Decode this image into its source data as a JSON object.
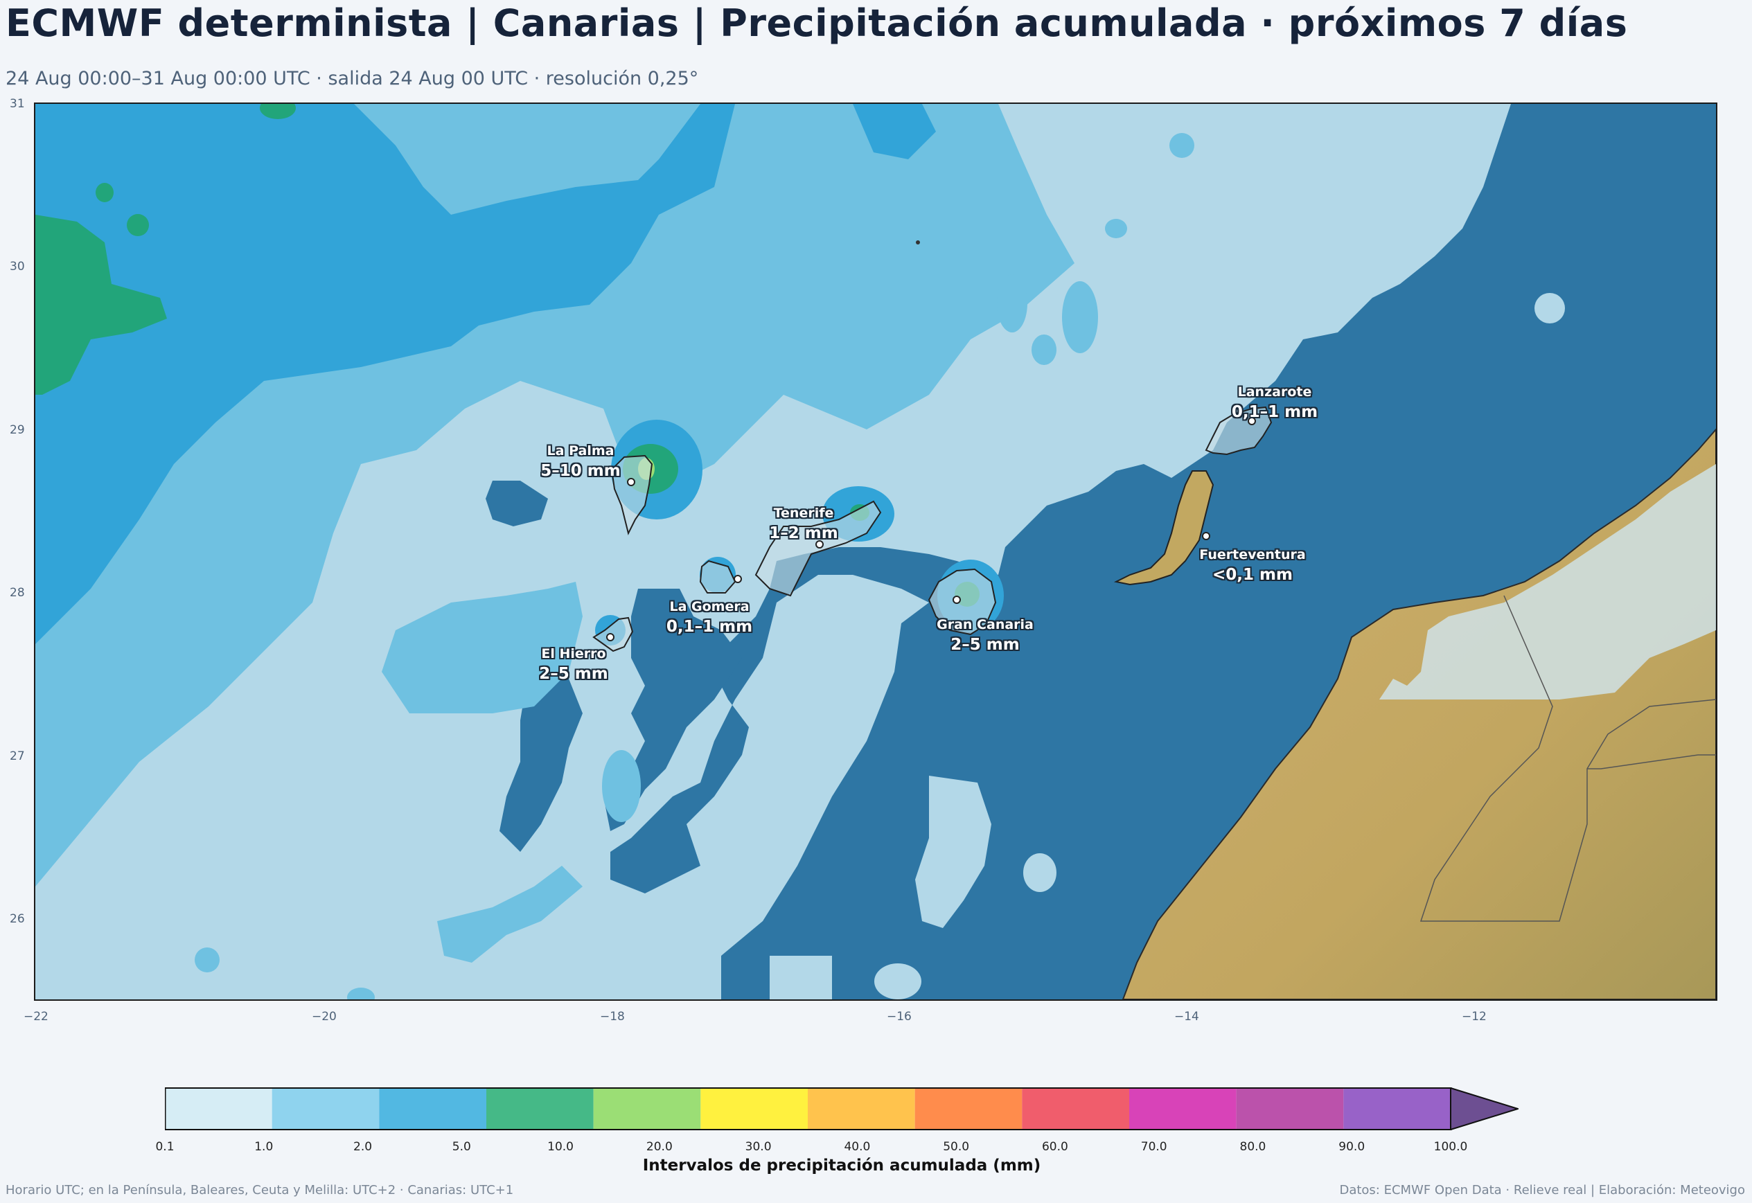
{
  "header": {
    "title": "ECMWF determinista | Canarias | Precipitación acumulada · próximos 7 días",
    "subtitle": "24 Aug 00:00–31 Aug 00:00 UTC · salida 24 Aug 00 UTC · resolución 0,25°"
  },
  "map": {
    "x_ticks": [
      "−22",
      "−20",
      "−18",
      "−16",
      "−14",
      "−12"
    ],
    "y_ticks": [
      "31",
      "30",
      "29",
      "28",
      "27",
      "26"
    ],
    "islands": [
      {
        "name": "La Palma",
        "value": "5–10 mm"
      },
      {
        "name": "Tenerife",
        "value": "1–2 mm"
      },
      {
        "name": "La Gomera",
        "value": "0,1–1 mm"
      },
      {
        "name": "El Hierro",
        "value": "2–5 mm"
      },
      {
        "name": "Gran Canaria",
        "value": "2–5 mm"
      },
      {
        "name": "Fuerteventura",
        "value": "<0,1 mm"
      },
      {
        "name": "Lanzarote",
        "value": "0,1–1 mm"
      }
    ]
  },
  "colorbar": {
    "labels": [
      "0.1",
      "1.0",
      "2.0",
      "5.0",
      "10.0",
      "20.0",
      "30.0",
      "40.0",
      "50.0",
      "60.0",
      "70.0",
      "80.0",
      "90.0",
      "100.0"
    ],
    "colors": [
      "#d6edf5",
      "#8fd3ee",
      "#52b8e2",
      "#45b987",
      "#9bde75",
      "#fff13f",
      "#ffc34d",
      "#ff8c4c",
      "#f05d6c",
      "#d843b8",
      "#bb52ab",
      "#9862c8",
      "#6d4f92"
    ],
    "title": "Intervalos de precipitación acumulada (mm)"
  },
  "footer": {
    "left": "Horario UTC; en la Península, Baleares, Ceuta y Melilla: UTC+2 · Canarias: UTC+1",
    "right": "Datos: ECMWF Open Data · Relieve real | Elaboración: Meteovigo"
  }
}
